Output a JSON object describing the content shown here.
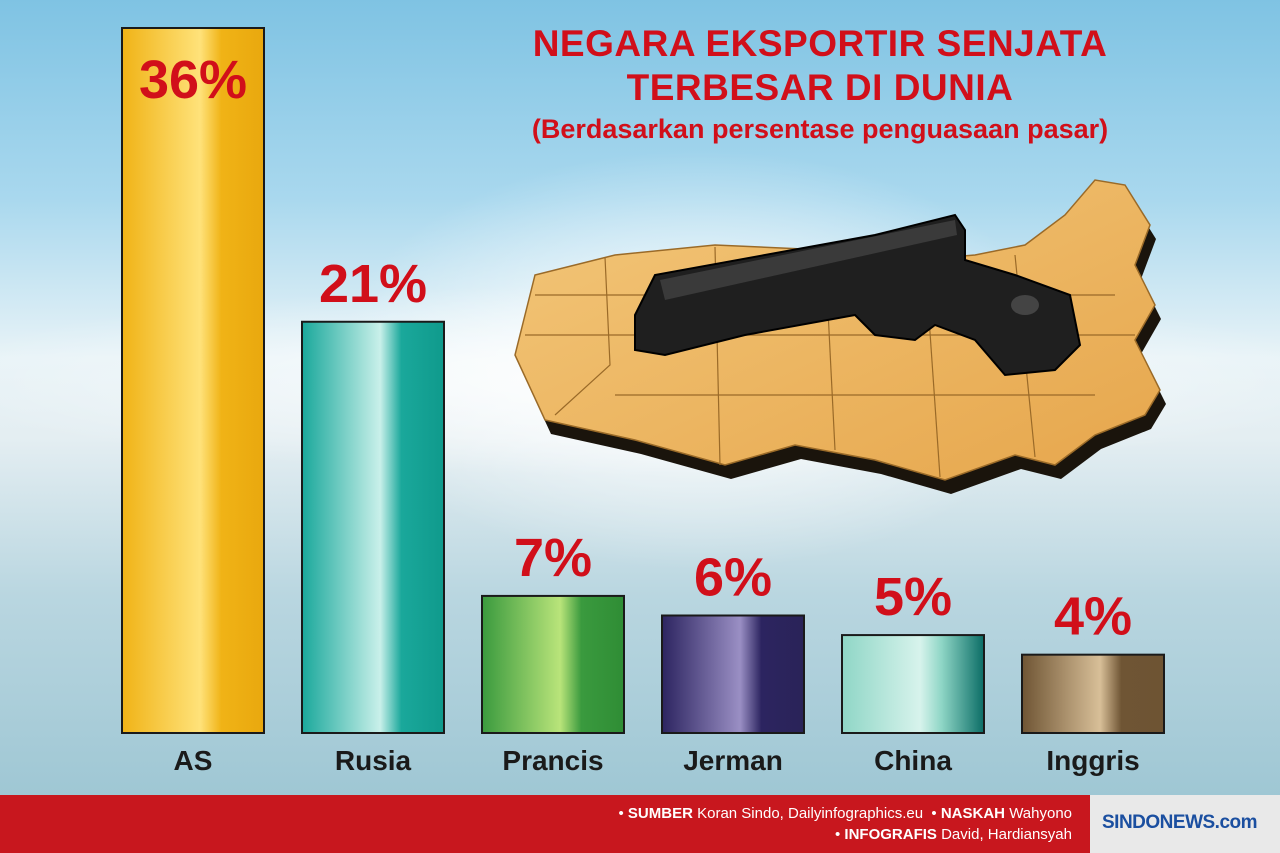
{
  "chart_data": {
    "type": "bar",
    "title": "NEGARA EKSPORTIR SENJATA TERBESAR DI DUNIA",
    "title_lines": [
      "NEGARA EKSPORTIR SENJATA",
      "TERBESAR DI DUNIA"
    ],
    "subtitle": "(Berdasarkan persentase penguasaan pasar)",
    "categories": [
      "AS",
      "Rusia",
      "Prancis",
      "Jerman",
      "China",
      "Inggris"
    ],
    "values": [
      36,
      21,
      7,
      6,
      5,
      4
    ],
    "value_labels": [
      "36%",
      "21%",
      "7%",
      "6%",
      "5%",
      "4%"
    ],
    "unit": "%",
    "ylim": [
      0,
      36
    ],
    "grid": false,
    "legend": "none",
    "colors": {
      "AS": [
        "#f0b316",
        "#ffe27a",
        "#e9a80e"
      ],
      "Rusia": [
        "#1aa89b",
        "#c9f0ea",
        "#0f9a8c"
      ],
      "Prancis": [
        "#3a9a3e",
        "#b9e47a",
        "#2f8d35"
      ],
      "Jerman": [
        "#2c2460",
        "#9a8fc4",
        "#2a2358"
      ],
      "China": [
        "#8fd6c6",
        "#d7f3ec",
        "#0b6d66"
      ],
      "Inggris": [
        "#6f5534",
        "#d8bf98",
        "#6e5433"
      ]
    },
    "label_color": "#d10f1a"
  },
  "footer": {
    "source_label": "SUMBER",
    "source_value": "Koran Sindo, Dailyinfographics.eu",
    "writer_label": "NASKAH",
    "writer_value": "Wahyono",
    "graphics_label": "INFOGRAFIS",
    "graphics_value": "David, Hardiansyah",
    "logo": "SINDONEWS.com"
  },
  "illustration": {
    "icon": "pistol-on-usa-map-icon"
  }
}
